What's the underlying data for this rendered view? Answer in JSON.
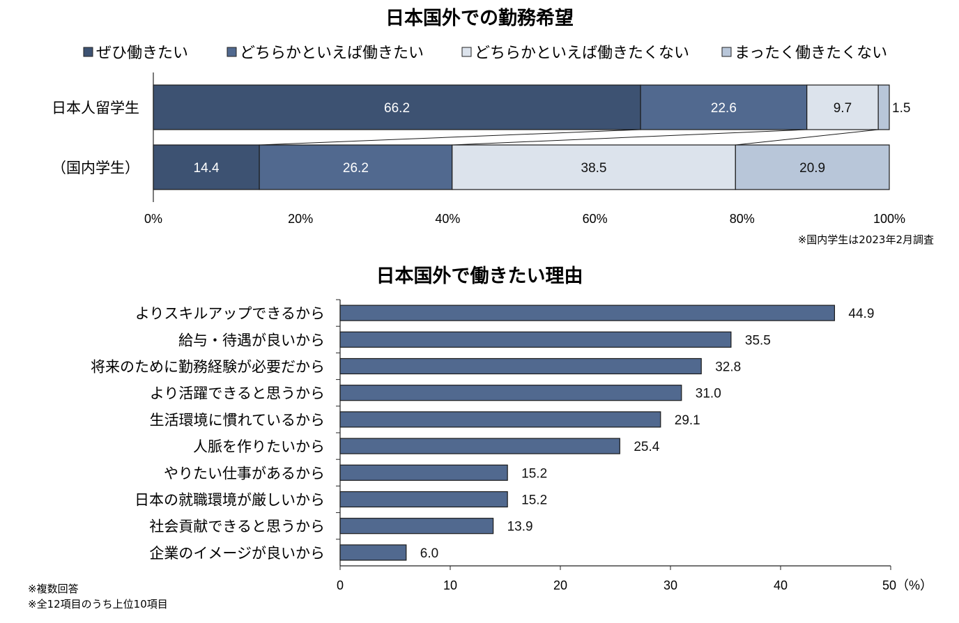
{
  "chart_data": [
    {
      "type": "bar",
      "orientation": "horizontal",
      "stacked": "percent",
      "title": "日本国外での勤務希望",
      "categories": [
        "日本人留学生",
        "（国内学生）"
      ],
      "series": [
        {
          "name": "ぜひ働きたい",
          "values": [
            66.2,
            14.4
          ],
          "color": "#3d5272"
        },
        {
          "name": "どちらかといえば働きたい",
          "values": [
            22.6,
            26.2
          ],
          "color": "#51698f"
        },
        {
          "name": "どちらかといえば働きたくない",
          "values": [
            9.7,
            38.5
          ],
          "color": "#dce3ec"
        },
        {
          "name": "まったく働きたくない",
          "values": [
            1.5,
            20.9
          ],
          "color": "#b8c6d9"
        }
      ],
      "xlim": [
        0,
        100
      ],
      "xticks": [
        "0%",
        "20%",
        "40%",
        "60%",
        "80%",
        "100%"
      ],
      "legend": "top",
      "note": "※国内学生は2023年2月調査"
    },
    {
      "type": "bar",
      "orientation": "horizontal",
      "title": "日本国外で働きたい理由",
      "categories": [
        "よりスキルアップできるから",
        "給与・待遇が良いから",
        "将来のために勤務経験が必要だから",
        "より活躍できると思うから",
        "生活環境に慣れているから",
        "人脈を作りたいから",
        "やりたい仕事があるから",
        "日本の就職環境が厳しいから",
        "社会貢献できると思うから",
        "企業のイメージが良いから"
      ],
      "values": [
        44.9,
        35.5,
        32.8,
        31.0,
        29.1,
        25.4,
        15.2,
        15.2,
        13.9,
        6.0
      ],
      "value_labels": [
        "44.9",
        "35.5",
        "32.8",
        "31.0",
        "29.1",
        "25.4",
        "15.2",
        "15.2",
        "13.9",
        "6.0"
      ],
      "xlim": [
        0,
        50
      ],
      "xticks": [
        "0",
        "10",
        "20",
        "30",
        "40",
        "50（%）"
      ],
      "color": "#51698f",
      "notes": [
        "※複数回答",
        "※全12項目のうち上位10項目"
      ]
    }
  ]
}
